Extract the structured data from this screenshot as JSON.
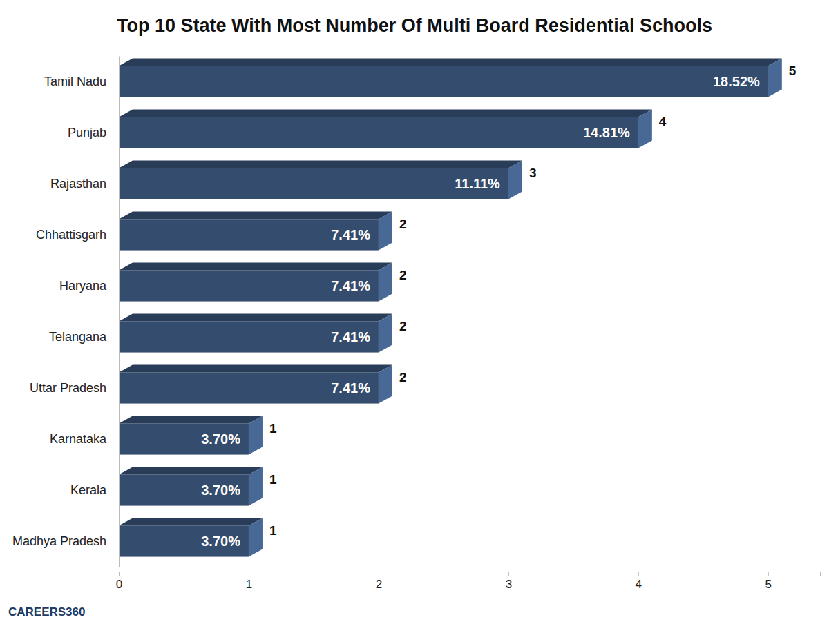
{
  "chart_data": {
    "type": "bar",
    "orientation": "horizontal",
    "title": "Top 10 State With Most Number Of Multi Board Residential Schools",
    "categories": [
      "Tamil Nadu",
      "Punjab",
      "Rajasthan",
      "Chhattisgarh",
      "Haryana",
      "Telangana",
      "Uttar Pradesh",
      "Karnataka",
      "Kerala",
      "Madhya Pradesh"
    ],
    "values": [
      5,
      4,
      3,
      2,
      2,
      2,
      2,
      1,
      1,
      1
    ],
    "shares": [
      "18.52%",
      "14.81%",
      "11.11%",
      "7.41%",
      "7.41%",
      "7.41%",
      "7.41%",
      "3.70%",
      "3.70%",
      "3.70%"
    ],
    "color": "#344c6d",
    "xlim": [
      0,
      5.4
    ],
    "xticks": [
      0,
      1,
      2,
      3,
      4,
      5
    ],
    "data_labels": true,
    "grid": false,
    "logo": "CAREERS360"
  }
}
